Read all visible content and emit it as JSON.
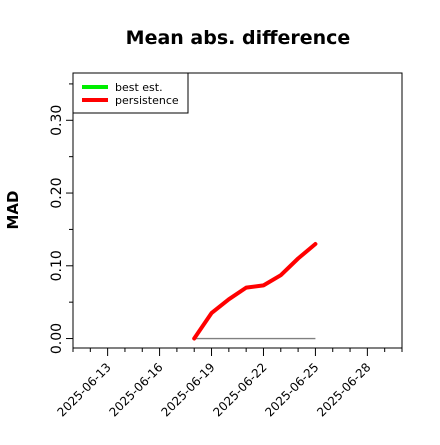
{
  "chart_data": {
    "type": "line",
    "title": "Mean abs. difference",
    "ylabel": "MAD",
    "xlabel": "",
    "x_ticks": [
      "2025-06-13",
      "2025-06-16",
      "2025-06-19",
      "2025-06-22",
      "2025-06-25",
      "2025-06-28"
    ],
    "y_ticks": [
      "0.00",
      "0.10",
      "0.20",
      "0.30"
    ],
    "y_minor_ticks": [
      0.05,
      0.15,
      0.25,
      0.35
    ],
    "xlim": [
      "2025-06-11",
      "2025-06-30"
    ],
    "ylim": [
      -0.013,
      0.365
    ],
    "legend": {
      "position": "top-left",
      "entries": [
        "best est.",
        "persistence"
      ]
    },
    "grid": false,
    "series": [
      {
        "name": "best est.",
        "color": "#00ee00",
        "x": [
          "2025-06-18",
          "2025-06-19",
          "2025-06-20",
          "2025-06-21",
          "2025-06-22",
          "2025-06-23",
          "2025-06-24",
          "2025-06-25"
        ],
        "values": [
          0,
          0,
          0,
          0,
          0,
          0,
          0,
          0
        ]
      },
      {
        "name": "persistence",
        "color": "#ff0000",
        "x": [
          "2025-06-18",
          "2025-06-19",
          "2025-06-20",
          "2025-06-21",
          "2025-06-22",
          "2025-06-23",
          "2025-06-24",
          "2025-06-25"
        ],
        "values": [
          0.0,
          0.035,
          0.054,
          0.07,
          0.073,
          0.087,
          0.11,
          0.13
        ]
      }
    ],
    "reference_line": {
      "color": "#808080",
      "value": 0,
      "x": [
        "2025-06-18",
        "2025-06-25"
      ]
    }
  }
}
